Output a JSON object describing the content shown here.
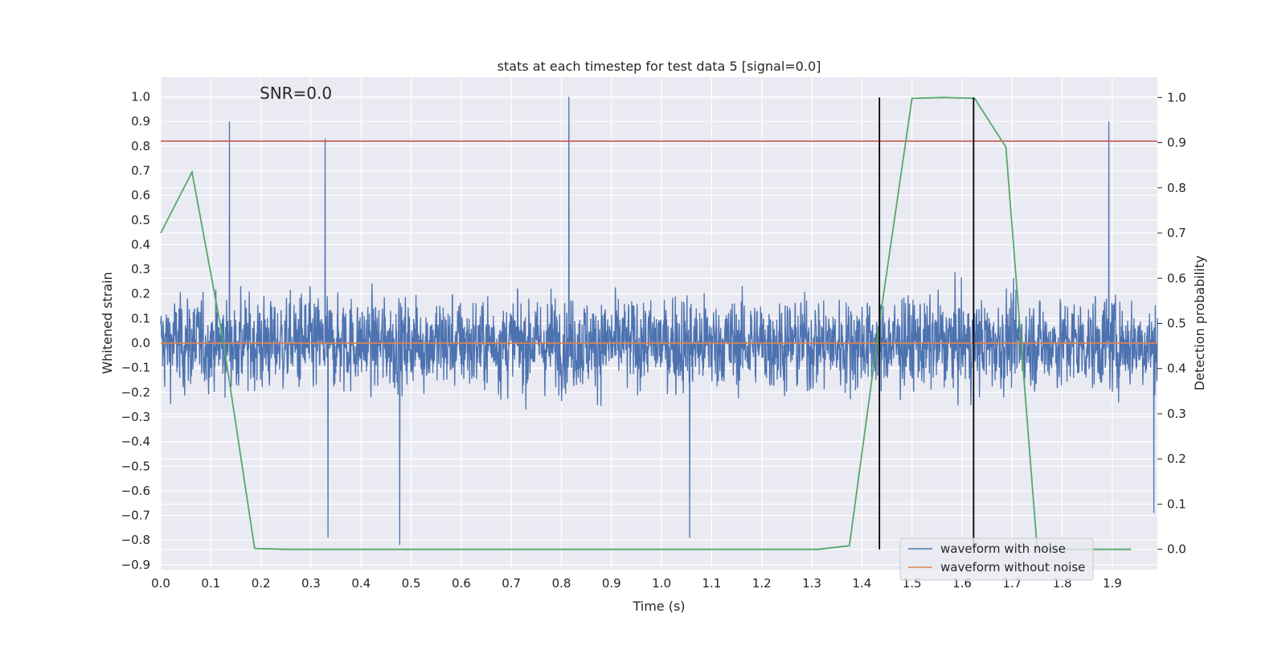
{
  "chart_data": {
    "type": "line",
    "title": "stats at each timestep for test data 5 [signal=0.0]",
    "xlabel": "Time (s)",
    "ylabel": "Whitened strain",
    "y2label": "Detection probability",
    "annotation": "SNR=0.0",
    "xlim": [
      0.0,
      1.99
    ],
    "ylim": [
      -0.92,
      1.08
    ],
    "y2lim": [
      -0.045,
      1.045
    ],
    "xticks": [
      "0.0",
      "0.1",
      "0.2",
      "0.3",
      "0.4",
      "0.5",
      "0.6",
      "0.7",
      "0.8",
      "0.9",
      "1.0",
      "1.1",
      "1.2",
      "1.3",
      "1.4",
      "1.5",
      "1.6",
      "1.7",
      "1.8",
      "1.9"
    ],
    "yticks": [
      "1.0",
      "0.9",
      "0.8",
      "0.7",
      "0.6",
      "0.5",
      "0.4",
      "0.3",
      "0.2",
      "0.1",
      "0.0",
      "−0.1",
      "−0.2",
      "−0.3",
      "−0.4",
      "−0.5",
      "−0.6",
      "−0.7",
      "−0.8",
      "−0.9"
    ],
    "y2ticks": [
      "1.0",
      "0.9",
      "0.8",
      "0.7",
      "0.6",
      "0.5",
      "0.4",
      "0.3",
      "0.2",
      "0.1",
      "0.0"
    ],
    "grid": true,
    "legend_position": "lower right",
    "series": [
      {
        "name": "waveform with noise",
        "color": "#4c72b0",
        "axis": "left",
        "sample_rate_hz": 2048,
        "peaks": [
          {
            "x": 0.137,
            "y": 0.9
          },
          {
            "x": 0.328,
            "y": 0.83
          },
          {
            "x": 0.815,
            "y": 1.0
          },
          {
            "x": 1.893,
            "y": 0.9
          },
          {
            "x": 0.477,
            "y": -0.82
          },
          {
            "x": 0.334,
            "y": -0.79
          },
          {
            "x": 1.056,
            "y": -0.79
          },
          {
            "x": 1.983,
            "y": -0.69
          }
        ]
      },
      {
        "name": "waveform without noise",
        "color": "#dd8452",
        "axis": "left",
        "x": [
          0.0,
          1.99
        ],
        "y": [
          0.0,
          0.0
        ]
      },
      {
        "color": "#55a868",
        "axis": "right",
        "x": [
          0.0,
          0.0625,
          0.125,
          0.1875,
          0.25,
          0.3125,
          0.375,
          0.4375,
          0.5,
          0.5625,
          0.625,
          0.6875,
          0.75,
          0.8125,
          0.875,
          0.9375,
          1.0,
          1.0625,
          1.125,
          1.1875,
          1.25,
          1.3125,
          1.375,
          1.4375,
          1.5,
          1.5625,
          1.625,
          1.6875,
          1.75,
          1.8125,
          1.875,
          1.9375
        ],
        "y": [
          0.7,
          0.835,
          0.46,
          0.002,
          0.0,
          0.0,
          0.0,
          0.0,
          0.0,
          0.0,
          0.0,
          0.0,
          0.0,
          0.0,
          0.0,
          0.0,
          0.0,
          0.0,
          0.0,
          0.0,
          0.0,
          0.0,
          0.008,
          0.52,
          0.998,
          1.0,
          0.998,
          0.89,
          0.0,
          0.0,
          0.0,
          0.0
        ]
      }
    ],
    "threshold": {
      "y": 0.82,
      "color": "#c44e52",
      "axis": "left"
    },
    "markers": [
      {
        "x": 1.435,
        "y_top": 1.0,
        "y_bottom": 0.0,
        "color": "#000000",
        "axis": "right"
      },
      {
        "x": 1.623,
        "y_top": 1.0,
        "y_bottom": 0.0,
        "color": "#000000",
        "axis": "right"
      }
    ]
  }
}
